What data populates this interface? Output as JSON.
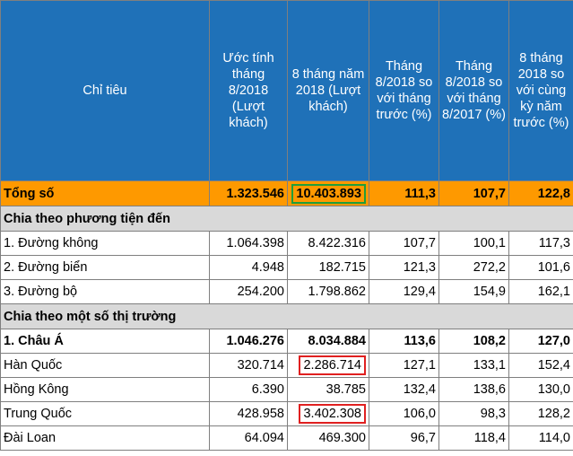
{
  "columns": [
    "Chỉ tiêu",
    "Ước tính tháng 8/2018 (Lượt khách)",
    "8 tháng năm 2018 (Lượt khách)",
    "Tháng 8/2018 so với tháng trước (%)",
    "Tháng 8/2018 so với tháng 8/2017 (%)",
    "8 tháng 2018 so với cùng kỳ năm trước (%)"
  ],
  "total": {
    "label": "Tổng số",
    "est_aug": "1.323.546",
    "eight_months": "10.403.893",
    "vs_prev_month": "111,3",
    "vs_aug_2017": "107,7",
    "vs_same_period": "122,8"
  },
  "section_transport": "Chia theo phương tiện đến",
  "transport": [
    {
      "label": "1. Đường không",
      "est_aug": "1.064.398",
      "eight_months": "8.422.316",
      "vs_prev_month": "107,7",
      "vs_aug_2017": "100,1",
      "vs_same_period": "117,3"
    },
    {
      "label": "2. Đường biển",
      "est_aug": "4.948",
      "eight_months": "182.715",
      "vs_prev_month": "121,3",
      "vs_aug_2017": "272,2",
      "vs_same_period": "101,6"
    },
    {
      "label": "3. Đường bộ",
      "est_aug": "254.200",
      "eight_months": "1.798.862",
      "vs_prev_month": "129,4",
      "vs_aug_2017": "154,9",
      "vs_same_period": "162,1"
    }
  ],
  "section_market": "Chia theo một số thị trường",
  "market": [
    {
      "label": "1. Châu Á",
      "est_aug": "1.046.276",
      "eight_months": "8.034.884",
      "vs_prev_month": "113,6",
      "vs_aug_2017": "108,2",
      "vs_same_period": "127,0"
    },
    {
      "label": "Hàn Quốc",
      "est_aug": "320.714",
      "eight_months": "2.286.714",
      "vs_prev_month": "127,1",
      "vs_aug_2017": "133,1",
      "vs_same_period": "152,4"
    },
    {
      "label": "Hồng Kông",
      "est_aug": "6.390",
      "eight_months": "38.785",
      "vs_prev_month": "132,4",
      "vs_aug_2017": "138,6",
      "vs_same_period": "130,0"
    },
    {
      "label": "Trung Quốc",
      "est_aug": "428.958",
      "eight_months": "3.402.308",
      "vs_prev_month": "106,0",
      "vs_aug_2017": "98,3",
      "vs_same_period": "128,2"
    },
    {
      "label": "Đài Loan",
      "est_aug": "64.094",
      "eight_months": "469.300",
      "vs_prev_month": "96,7",
      "vs_aug_2017": "118,4",
      "vs_same_period": "114,0"
    }
  ],
  "colors": {
    "header": "#1f71b8",
    "total_row": "#fe9900",
    "section_row": "#d9d9d9",
    "highlight_green": "#1f9e3a",
    "highlight_red": "#e02020"
  }
}
